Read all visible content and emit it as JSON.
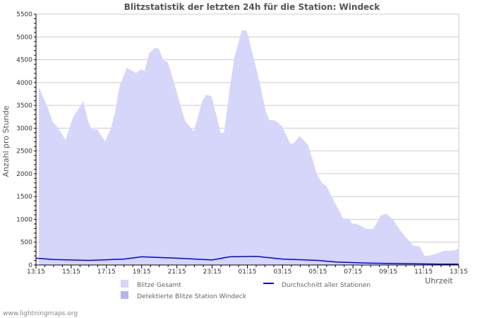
{
  "chart_data": {
    "type": "area",
    "title": "Blitzstatistik der letzten 24h für die Station: Windeck",
    "xlabel": "Uhrzeit",
    "ylabel": "Anzahl pro Stunde",
    "ylim": [
      0,
      5500
    ],
    "xlim_hours": [
      0,
      24
    ],
    "yticks": [
      0,
      500,
      1000,
      1500,
      2000,
      2500,
      3000,
      3500,
      4000,
      4500,
      5000,
      5500
    ],
    "xticks": [
      "13:15",
      "15:15",
      "17:15",
      "19:15",
      "21:15",
      "23:15",
      "01:15",
      "03:15",
      "05:15",
      "07:15",
      "09:15",
      "11:15",
      "13:15"
    ],
    "grid": true,
    "legend_position": "bottom",
    "colors": {
      "total": "#d6d6fa",
      "station": "#b4b4f2",
      "average": "#0000ee",
      "grid": "#cccccc",
      "text": "#555555"
    },
    "series": [
      {
        "name": "Blitze Gesamt",
        "kind": "area",
        "x": [
          0.16,
          0.63,
          0.96,
          1.23,
          1.68,
          2.08,
          2.68,
          2.96,
          3.16,
          3.48,
          3.92,
          4.24,
          4.48,
          4.76,
          5.16,
          5.68,
          5.96,
          6.16,
          6.44,
          6.76,
          6.96,
          7.24,
          7.48,
          7.84,
          8.24,
          8.48,
          8.96,
          9.44,
          9.68,
          9.96,
          10.24,
          10.48,
          10.68,
          11.04,
          11.28,
          11.68,
          11.96,
          12.24,
          12.64,
          13.04,
          13.24,
          13.56,
          13.96,
          14.44,
          14.64,
          14.96,
          15.44,
          15.96,
          16.24,
          16.48,
          16.88,
          17.44,
          17.76,
          17.96,
          18.24,
          18.48,
          18.76,
          19.16,
          19.56,
          19.88,
          20.24,
          20.64,
          21.04,
          21.44,
          21.76,
          22.08,
          22.36,
          22.76,
          23.16,
          23.76,
          24
        ],
        "values": [
          3900,
          3490,
          3130,
          3020,
          2740,
          3220,
          3590,
          3150,
          2980,
          2970,
          2710,
          2980,
          3330,
          3950,
          4320,
          4210,
          4290,
          4250,
          4650,
          4760,
          4740,
          4490,
          4450,
          4000,
          3440,
          3150,
          2930,
          3600,
          3730,
          3700,
          3280,
          2900,
          2900,
          4000,
          4570,
          5140,
          5140,
          4720,
          4100,
          3380,
          3180,
          3170,
          3050,
          2660,
          2670,
          2830,
          2640,
          1980,
          1800,
          1740,
          1430,
          1020,
          1020,
          910,
          900,
          850,
          790,
          790,
          1080,
          1130,
          1010,
          780,
          590,
          420,
          410,
          200,
          210,
          250,
          310,
          320,
          360
        ]
      },
      {
        "name": "Detektierte Blitze Station Windeck",
        "kind": "area",
        "x": [],
        "values": []
      },
      {
        "name": "Durchschnitt aller Stationen",
        "kind": "line",
        "x": [
          0,
          1,
          3,
          5,
          6,
          8,
          10,
          11,
          12.5,
          14,
          16,
          17,
          19,
          21,
          23,
          24
        ],
        "values": [
          150,
          120,
          100,
          130,
          180,
          150,
          110,
          180,
          190,
          130,
          100,
          65,
          40,
          30,
          20,
          20
        ]
      }
    ]
  },
  "footer": "www.lightningmaps.org"
}
